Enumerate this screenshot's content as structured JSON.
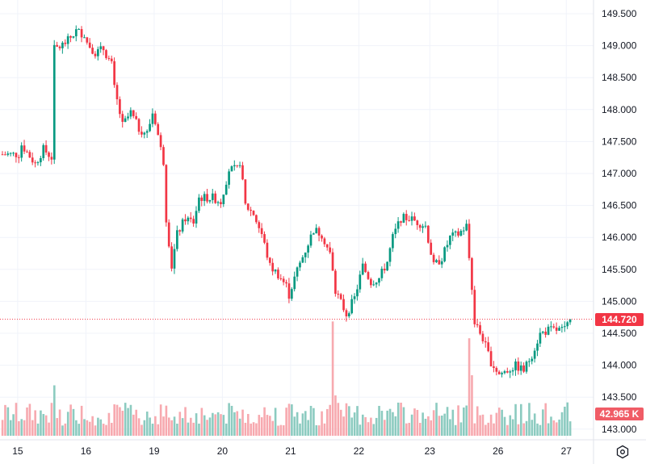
{
  "chart_data": {
    "type": "candlestick",
    "title": "",
    "interval": "1 hour",
    "colors": {
      "up": "#089981",
      "down": "#F23645",
      "up_volume": "#8ccbc0",
      "down_volume": "#f7a9af",
      "grid": "#f0f3fa",
      "text": "#131722"
    },
    "y_axis": {
      "range": [
        142.93,
        149.7
      ],
      "ticks": [
        "149.500",
        "149.000",
        "148.500",
        "148.000",
        "147.500",
        "147.000",
        "146.500",
        "146.000",
        "145.500",
        "145.000",
        "144.500",
        "144.000",
        "143.500",
        "143.000"
      ]
    },
    "x_axis": {
      "tick_labels": [
        {
          "label": "15",
          "index": 5
        },
        {
          "label": "16",
          "index": 30
        },
        {
          "label": "19",
          "index": 55
        },
        {
          "label": "20",
          "index": 80
        },
        {
          "label": "21",
          "index": 105
        },
        {
          "label": "22",
          "index": 130
        },
        {
          "label": "23",
          "index": 156
        },
        {
          "label": "26",
          "index": 181
        },
        {
          "label": "27",
          "index": 206
        }
      ],
      "candle_count": 209
    },
    "price_path": [
      [
        0,
        147.3
      ],
      [
        6,
        147.3
      ],
      [
        7,
        147.45
      ],
      [
        12,
        147.15
      ],
      [
        15,
        147.38
      ],
      [
        18,
        147.25
      ],
      [
        19,
        148.95
      ],
      [
        21,
        148.98
      ],
      [
        24,
        149.08
      ],
      [
        27,
        149.23
      ],
      [
        30,
        149.18
      ],
      [
        31,
        149.05
      ],
      [
        34,
        148.89
      ],
      [
        37,
        148.95
      ],
      [
        40,
        148.7
      ],
      [
        41,
        148.33
      ],
      [
        44,
        147.75
      ],
      [
        47,
        147.95
      ],
      [
        50,
        147.7
      ],
      [
        53,
        147.63
      ],
      [
        55,
        147.95
      ],
      [
        56,
        147.82
      ],
      [
        58,
        147.38
      ],
      [
        59,
        147.19
      ],
      [
        60,
        146.3
      ],
      [
        62,
        145.55
      ],
      [
        64,
        146.05
      ],
      [
        67,
        146.3
      ],
      [
        70,
        146.24
      ],
      [
        72,
        146.62
      ],
      [
        77,
        146.62
      ],
      [
        80,
        146.56
      ],
      [
        83,
        147.06
      ],
      [
        86,
        147.06
      ],
      [
        87,
        147.19
      ],
      [
        89,
        146.5
      ],
      [
        92,
        146.37
      ],
      [
        95,
        146.05
      ],
      [
        98,
        145.55
      ],
      [
        101,
        145.42
      ],
      [
        104,
        145.24
      ],
      [
        105,
        145.1
      ],
      [
        108,
        145.49
      ],
      [
        111,
        145.8
      ],
      [
        114,
        146.12
      ],
      [
        117,
        146.05
      ],
      [
        120,
        145.74
      ],
      [
        122,
        145.17
      ],
      [
        124,
        144.98
      ],
      [
        126,
        144.8
      ],
      [
        129,
        145.05
      ],
      [
        132,
        145.55
      ],
      [
        135,
        145.3
      ],
      [
        138,
        145.36
      ],
      [
        141,
        145.62
      ],
      [
        143,
        146.0
      ],
      [
        146,
        146.3
      ],
      [
        149,
        146.3
      ],
      [
        152,
        146.24
      ],
      [
        155,
        146.18
      ],
      [
        158,
        145.55
      ],
      [
        161,
        145.68
      ],
      [
        164,
        146.0
      ],
      [
        167,
        146.05
      ],
      [
        170,
        146.18
      ],
      [
        172,
        145.17
      ],
      [
        173,
        144.67
      ],
      [
        176,
        144.42
      ],
      [
        179,
        144.05
      ],
      [
        182,
        143.86
      ],
      [
        185,
        143.92
      ],
      [
        188,
        143.99
      ],
      [
        191,
        143.92
      ],
      [
        194,
        144.17
      ],
      [
        197,
        144.49
      ],
      [
        200,
        144.55
      ],
      [
        203,
        144.55
      ],
      [
        206,
        144.55
      ],
      [
        208,
        144.72
      ]
    ],
    "volume_units": "K",
    "volume_spikes": [
      [
        19,
        150
      ],
      [
        121,
        340
      ],
      [
        122,
        120
      ],
      [
        171,
        290
      ],
      [
        172,
        180
      ]
    ],
    "last_price": "144.720",
    "last_volume": "42.965 K"
  },
  "icons": {
    "settings": "settings-hexagon-icon"
  }
}
